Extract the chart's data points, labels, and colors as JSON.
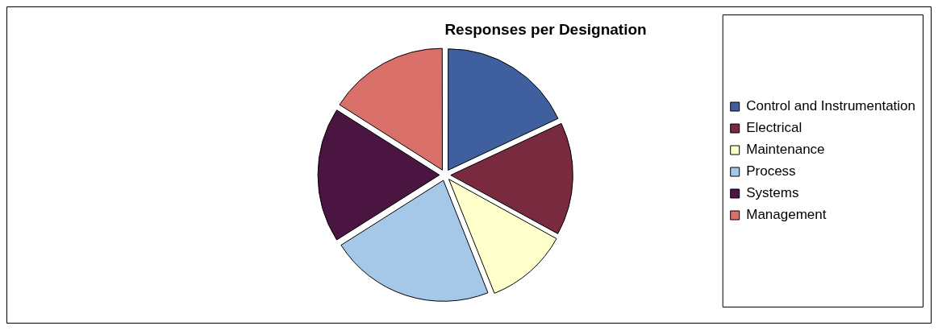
{
  "chart_data": {
    "type": "pie",
    "title": "Responses per Designation",
    "categories": [
      "Control and Instrumentation",
      "Electrical",
      "Maintenance",
      "Process",
      "Systems",
      "Management"
    ],
    "values": [
      18,
      15,
      11,
      22,
      18,
      16
    ],
    "colors": [
      "#3f5f9f",
      "#7a2a3f",
      "#ffffcc",
      "#a6c8e8",
      "#4a1540",
      "#d9706a"
    ],
    "legend": "right"
  }
}
